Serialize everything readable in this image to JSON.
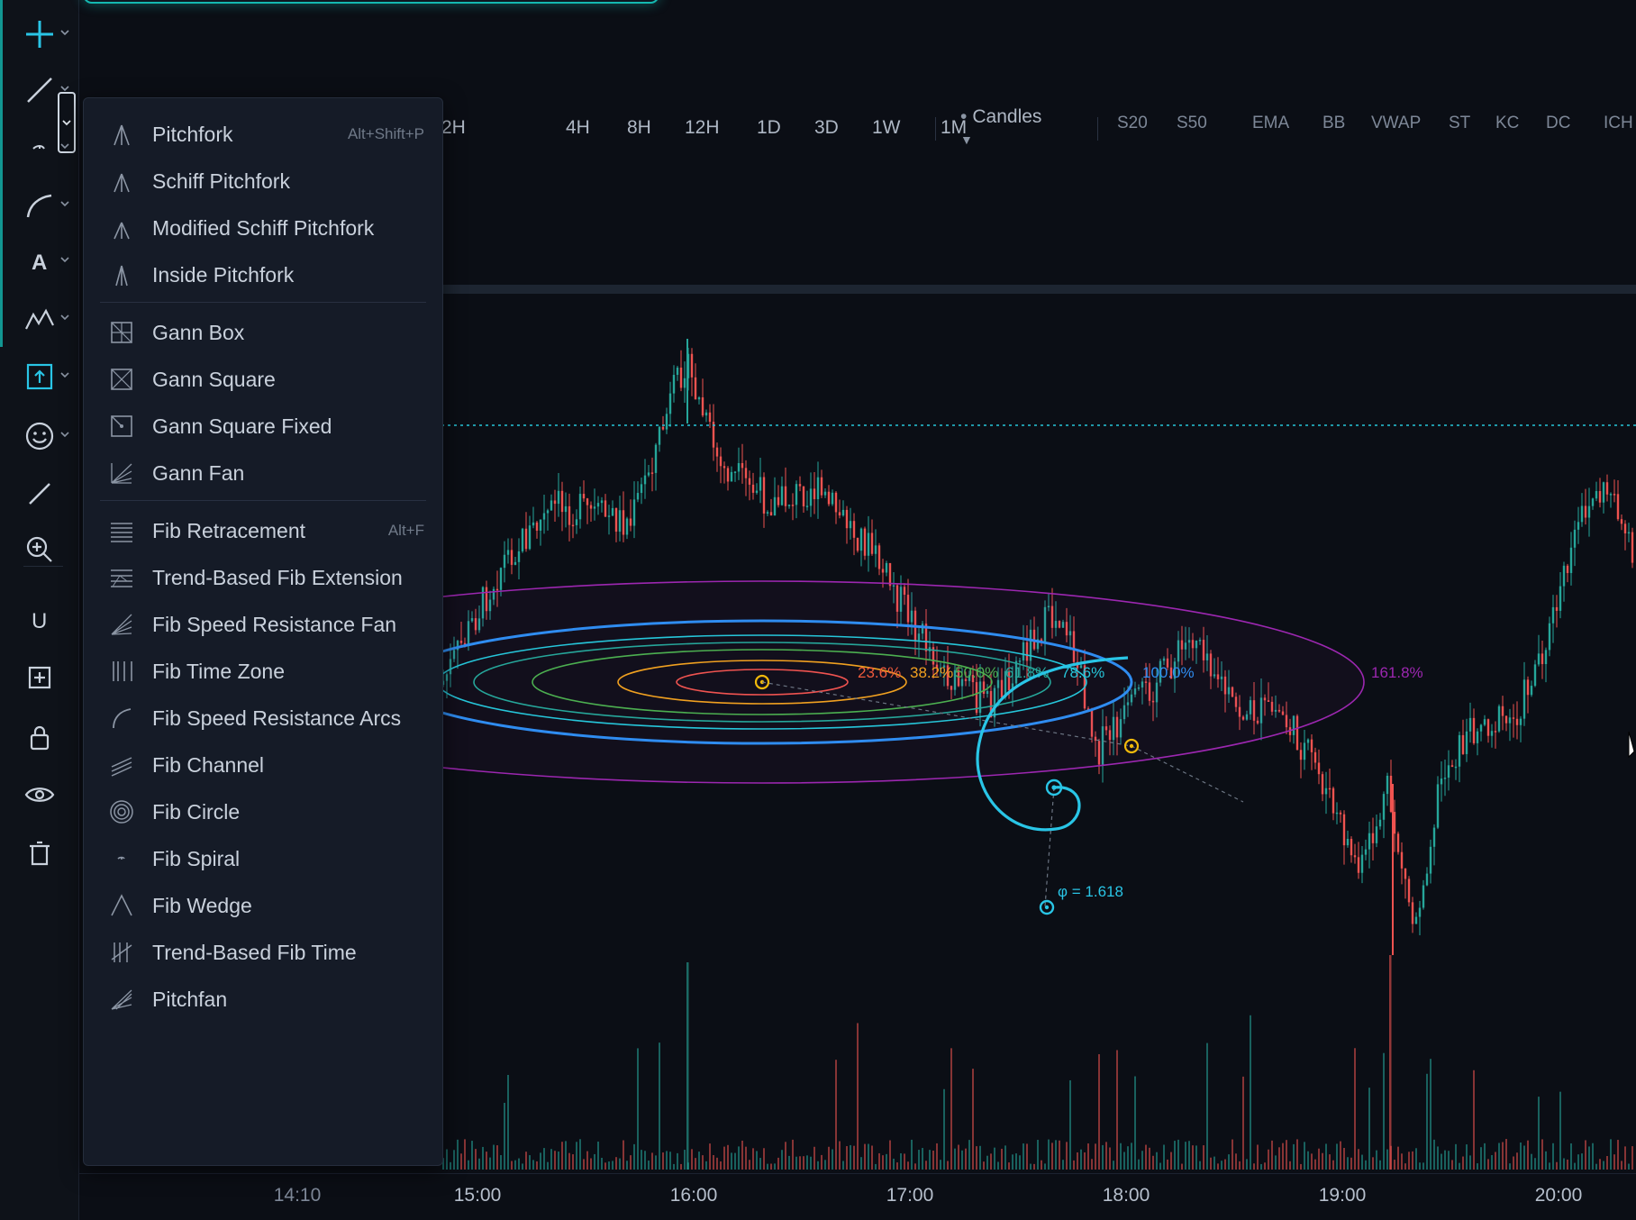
{
  "toolbar": {
    "tools": [
      {
        "name": "crosshair-tool",
        "icon": "crosshair-icon"
      },
      {
        "name": "trendline-tool",
        "icon": "line-icon"
      },
      {
        "name": "fib-spiral-tool",
        "icon": "fib-spiral-icon"
      },
      {
        "name": "brush-tool",
        "icon": "brush-icon"
      },
      {
        "name": "text-tool",
        "icon": "text-icon",
        "glyph": "A"
      },
      {
        "name": "patterns-tool",
        "icon": "zigzag-icon"
      },
      {
        "name": "measure-tool",
        "icon": "measure-icon"
      },
      {
        "name": "emoji-tool",
        "icon": "smiley-icon"
      },
      {
        "name": "ruler-tool",
        "icon": "ruler-icon"
      },
      {
        "name": "zoom-tool",
        "icon": "zoom-in-icon"
      },
      {
        "name": "magnet-tool",
        "icon": "magnet-icon",
        "glyph": "U"
      },
      {
        "name": "add-drawing-tool",
        "icon": "add-box-icon"
      },
      {
        "name": "lock-tool",
        "icon": "lock-icon"
      },
      {
        "name": "visibility-tool",
        "icon": "eye-icon"
      },
      {
        "name": "delete-tool",
        "icon": "trash-icon"
      }
    ]
  },
  "timeframes": [
    "2H",
    "4H",
    "8H",
    "12H",
    "1D",
    "3D",
    "1W",
    "1M"
  ],
  "chart_type_label": "Candles",
  "indicators": [
    "S20",
    "S50",
    "EMA",
    "BB",
    "VWAP",
    "ST",
    "KC",
    "DC",
    "ICH"
  ],
  "menu": {
    "groups": [
      [
        {
          "label": "Pitchfork",
          "shortcut": "Alt+Shift+P",
          "icon": "pitchfork-icon"
        },
        {
          "label": "Schiff Pitchfork",
          "shortcut": "",
          "icon": "schiff-pitchfork-icon"
        },
        {
          "label": "Modified Schiff Pitchfork",
          "shortcut": "",
          "icon": "modified-schiff-pitchfork-icon"
        },
        {
          "label": "Inside Pitchfork",
          "shortcut": "",
          "icon": "inside-pitchfork-icon"
        }
      ],
      [
        {
          "label": "Gann Box",
          "shortcut": "",
          "icon": "gann-box-icon"
        },
        {
          "label": "Gann Square",
          "shortcut": "",
          "icon": "gann-square-icon"
        },
        {
          "label": "Gann Square Fixed",
          "shortcut": "",
          "icon": "gann-square-fixed-icon"
        },
        {
          "label": "Gann Fan",
          "shortcut": "",
          "icon": "gann-fan-icon"
        }
      ],
      [
        {
          "label": "Fib Retracement",
          "shortcut": "Alt+F",
          "icon": "fib-retracement-icon"
        },
        {
          "label": "Trend-Based Fib Extension",
          "shortcut": "",
          "icon": "fib-extension-icon"
        },
        {
          "label": "Fib Speed Resistance Fan",
          "shortcut": "",
          "icon": "fib-fan-icon"
        },
        {
          "label": "Fib Time Zone",
          "shortcut": "",
          "icon": "fib-time-zone-icon"
        },
        {
          "label": "Fib Speed Resistance Arcs",
          "shortcut": "",
          "icon": "fib-arcs-icon"
        },
        {
          "label": "Fib Channel",
          "shortcut": "",
          "icon": "fib-channel-icon"
        },
        {
          "label": "Fib Circle",
          "shortcut": "",
          "icon": "fib-circle-icon"
        },
        {
          "label": "Fib Spiral",
          "shortcut": "",
          "icon": "fib-spiral-icon"
        },
        {
          "label": "Fib Wedge",
          "shortcut": "",
          "icon": "fib-wedge-icon"
        },
        {
          "label": "Trend-Based Fib Time",
          "shortcut": "",
          "icon": "fib-time-icon"
        },
        {
          "label": "Pitchfan",
          "shortcut": "",
          "icon": "pitchfan-icon"
        }
      ]
    ]
  },
  "fib_levels": [
    {
      "label": "23.6%",
      "color": "#ef5a3c"
    },
    {
      "label": "38.2%",
      "color": "#f0a020"
    },
    {
      "label": "50.0%",
      "color": "#4caf50"
    },
    {
      "label": "61.8%",
      "color": "#26a69a"
    },
    {
      "label": "78.6%",
      "color": "#26c6da"
    },
    {
      "label": "100.0%",
      "color": "#2f8cf0"
    },
    {
      "label": "161.8%",
      "color": "#9c27b0"
    }
  ],
  "phi_label": "φ = 1.618",
  "time_labels": [
    {
      "label": "14:10",
      "dim": true
    },
    {
      "label": "15:00",
      "dim": false
    },
    {
      "label": "16:00",
      "dim": false
    },
    {
      "label": "17:00",
      "dim": false
    },
    {
      "label": "18:00",
      "dim": false
    },
    {
      "label": "19:00",
      "dim": false
    },
    {
      "label": "20:00",
      "dim": false
    }
  ],
  "colors": {
    "up": "#26a69a",
    "down": "#ef5350",
    "accent": "#14b8b0",
    "spiral": "#29c5e6",
    "anchor": "#f0b90b"
  }
}
